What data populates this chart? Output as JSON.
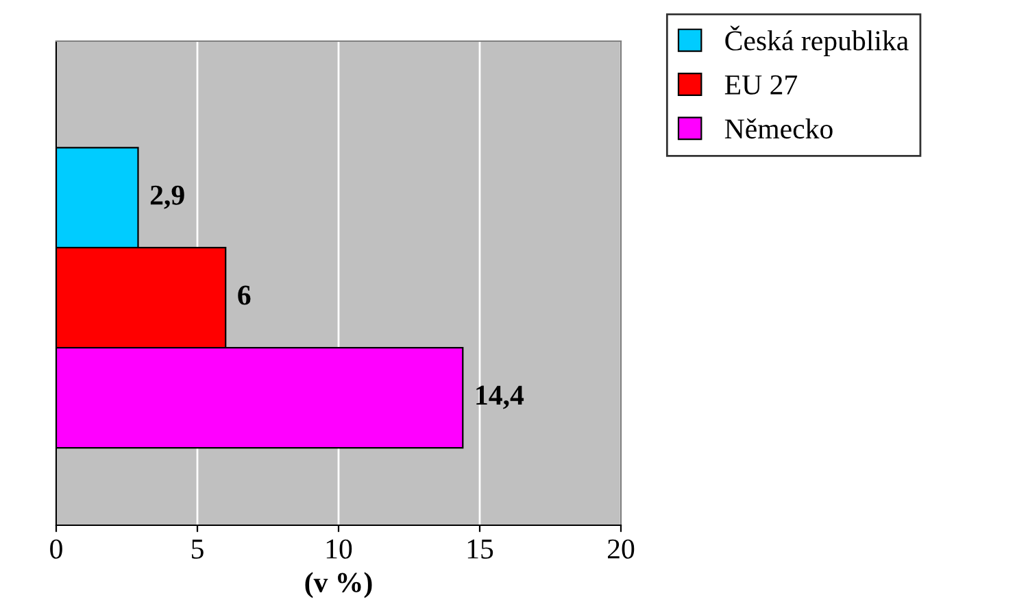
{
  "chart_data": {
    "type": "bar",
    "orientation": "horizontal",
    "xlabel": "(v %)",
    "categories": [
      null
    ],
    "series": [
      {
        "name": "Česká republika",
        "color": "#00ccff",
        "values": [
          2.9
        ],
        "value_labels": [
          "2,9"
        ]
      },
      {
        "name": "EU 27",
        "color": "#ff0000",
        "values": [
          6
        ],
        "value_labels": [
          "6"
        ]
      },
      {
        "name": "Německo",
        "color": "#ff00ff",
        "values": [
          14.4
        ],
        "value_labels": [
          "14,4"
        ]
      }
    ],
    "xlim": [
      0,
      20
    ],
    "xticks": [
      0,
      5,
      10,
      15,
      20
    ],
    "grid": "x",
    "legend": "top right"
  }
}
